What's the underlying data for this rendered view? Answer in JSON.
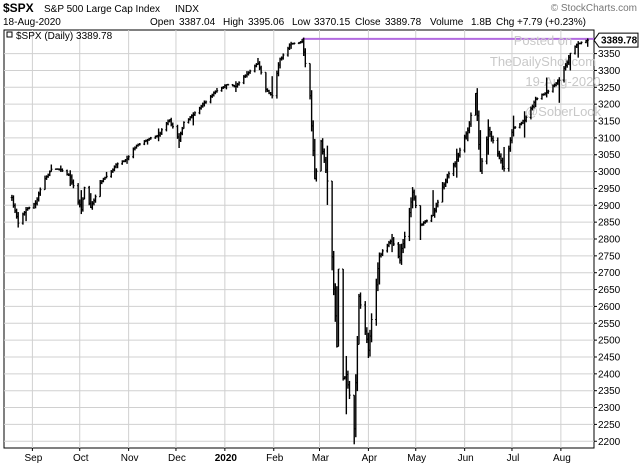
{
  "header": {
    "symbol": "$SPX",
    "name": "S&P 500 Large Cap Index",
    "exchange": "INDX",
    "watermark": "© StockCharts.com",
    "date": "18-Aug-2020",
    "open_label": "Open",
    "open": "3387.04",
    "high_label": "High",
    "high": "3395.06",
    "low_label": "Low",
    "low": "3370.15",
    "close_label": "Close",
    "close": "3389.78",
    "volume_label": "Volume",
    "volume": "1.8B",
    "chg_label": "Chg",
    "chg": "+7.79 (+0.23%)",
    "legend": "$SPX (Daily) 3389.78",
    "last_price_tag": "3389.78"
  },
  "overlay": {
    "line1": "Posted on",
    "line2": "TheDailyShot.com",
    "line3": "19-Aug-2020",
    "line4": "@SoberLook"
  },
  "colors": {
    "price": "#000000",
    "reference_line": "#b36be0",
    "grid": "#d0d0d0",
    "watermark_text": "#c8c8c8"
  },
  "chart_data": {
    "type": "ohlc",
    "series": [
      {
        "symbol": "$SPX",
        "x": [
          "2019-08-19",
          "2019-08-23",
          "2019-08-28",
          "2019-09-03",
          "2019-09-09",
          "2019-09-13",
          "2019-09-19",
          "2019-09-25",
          "2019-10-02",
          "2019-10-04",
          "2019-10-08",
          "2019-10-14",
          "2019-10-18",
          "2019-10-25",
          "2019-10-31",
          "2019-11-06",
          "2019-11-13",
          "2019-11-20",
          "2019-11-27",
          "2019-12-03",
          "2019-12-06",
          "2019-12-12",
          "2019-12-19",
          "2019-12-27",
          "2020-01-02",
          "2020-01-08",
          "2020-01-15",
          "2020-01-22",
          "2020-01-27",
          "2020-01-31",
          "2020-02-05",
          "2020-02-12",
          "2020-02-19",
          "2020-02-24",
          "2020-02-27",
          "2020-03-02",
          "2020-03-06",
          "2020-03-09",
          "2020-03-12",
          "2020-03-13",
          "2020-03-16",
          "2020-03-18",
          "2020-03-23",
          "2020-03-26",
          "2020-04-01",
          "2020-04-08",
          "2020-04-16",
          "2020-04-21",
          "2020-04-29",
          "2020-05-04",
          "2020-05-12",
          "2020-05-18",
          "2020-05-27",
          "2020-06-03",
          "2020-06-08",
          "2020-06-11",
          "2020-06-16",
          "2020-06-26",
          "2020-07-02",
          "2020-07-09",
          "2020-07-16",
          "2020-07-23",
          "2020-07-31",
          "2020-08-07",
          "2020-08-12",
          "2020-08-18"
        ],
        "close": [
          2923,
          2847,
          2887,
          2906,
          2979,
          3007,
          3006,
          2984,
          2887,
          2952,
          2893,
          2966,
          2986,
          3023,
          3038,
          3077,
          3094,
          3108,
          3154,
          3093,
          3146,
          3169,
          3205,
          3240,
          3258,
          3253,
          3289,
          3321,
          3244,
          3225,
          3334,
          3379,
          3386,
          3225,
          2979,
          3090,
          2972,
          2747,
          2481,
          2711,
          2386,
          2398,
          2237,
          2630,
          2470,
          2750,
          2800,
          2737,
          2939,
          2842,
          2870,
          2954,
          3036,
          3122,
          3232,
          3002,
          3124,
          3009,
          3130,
          3152,
          3215,
          3235,
          3271,
          3351,
          3380,
          3389.78
        ],
        "high": [
          2931,
          2880,
          2895,
          2915,
          2988,
          3021,
          3018,
          3004,
          2945,
          2955,
          2936,
          2975,
          2999,
          3027,
          3047,
          3080,
          3097,
          3128,
          3155,
          3114,
          3149,
          3176,
          3211,
          3248,
          3259,
          3268,
          3298,
          3337,
          3259,
          3283,
          3338,
          3385,
          3393.52,
          3259,
          3097,
          3094,
          3077,
          2863,
          2660,
          2711,
          2553,
          2453,
          2300,
          2637,
          2522,
          2760,
          2815,
          2785,
          2954,
          2844,
          2945,
          2969,
          3068,
          3131,
          3233,
          3123,
          3155,
          3073,
          3166,
          3179,
          3222,
          3279,
          3280,
          3352,
          3387,
          3395.06
        ],
        "low": [
          2913,
          2834,
          2853,
          2891,
          2959,
          3003,
          2999,
          2957,
          2874,
          2918,
          2892,
          2958,
          2980,
          3010,
          3023,
          3068,
          3080,
          3090,
          3146,
          3070,
          3128,
          3137,
          3193,
          3234,
          3244,
          3236,
          3279,
          3316,
          3235,
          3217,
          3306,
          3364,
          3381,
          3214,
          2977,
          3016,
          2901,
          2707,
          2478,
          2555,
          2380,
          2280,
          2191,
          2522,
          2447,
          2665,
          2761,
          2727,
          2891,
          2797,
          2869,
          2909,
          2982,
          3090,
          3190,
          2999,
          3050,
          3000,
          3104,
          3101,
          3191,
          3220,
          3204,
          3300,
          3338,
          3370.15
        ]
      }
    ],
    "y_ticks": [
      2200,
      2250,
      2300,
      2350,
      2400,
      2450,
      2500,
      2550,
      2600,
      2650,
      2700,
      2750,
      2800,
      2850,
      2900,
      2950,
      3000,
      3050,
      3100,
      3150,
      3200,
      3250,
      3300,
      3350
    ],
    "x_ticks": [
      {
        "label": "Sep",
        "date": "2019-09-01"
      },
      {
        "label": "Oct",
        "date": "2019-10-01"
      },
      {
        "label": "Nov",
        "date": "2019-11-01"
      },
      {
        "label": "Dec",
        "date": "2019-12-01"
      },
      {
        "label": "2020",
        "date": "2020-01-01"
      },
      {
        "label": "Feb",
        "date": "2020-02-01"
      },
      {
        "label": "Mar",
        "date": "2020-03-01"
      },
      {
        "label": "Apr",
        "date": "2020-04-01"
      },
      {
        "label": "May",
        "date": "2020-05-01"
      },
      {
        "label": "Jun",
        "date": "2020-06-01"
      },
      {
        "label": "Jul",
        "date": "2020-07-01"
      },
      {
        "label": "Aug",
        "date": "2020-08-01"
      }
    ],
    "reference_level": 3393.52,
    "ylim": [
      2180,
      3420
    ],
    "xlim": [
      "2019-08-14",
      "2020-08-22"
    ],
    "grid": true
  }
}
